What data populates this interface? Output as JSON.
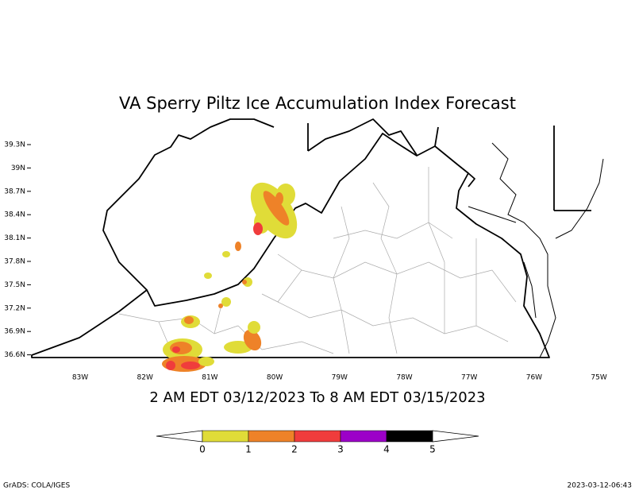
{
  "title": "VA Sperry Piltz Ice Accumulation Index Forecast",
  "subtitle": "2 AM EDT 03/12/2023 To 8 AM EDT 03/15/2023",
  "lat_labels": [
    "39.3N",
    "39N",
    "38.7N",
    "38.4N",
    "38.1N",
    "37.8N",
    "37.5N",
    "37.2N",
    "36.9N",
    "36.6N"
  ],
  "lon_labels": [
    "83W",
    "82W",
    "81W",
    "80W",
    "79W",
    "78W",
    "77W",
    "76W",
    "75W"
  ],
  "colorbar": {
    "colors": [
      "#e0dc38",
      "#ee8228",
      "#f03c3c",
      "#9c00c8",
      "#000000"
    ],
    "ticks": [
      0,
      1,
      2,
      3,
      4,
      5
    ]
  },
  "footer_left": "GrADS: COLA/IGES",
  "footer_right": "2023-03-12-06:43"
}
